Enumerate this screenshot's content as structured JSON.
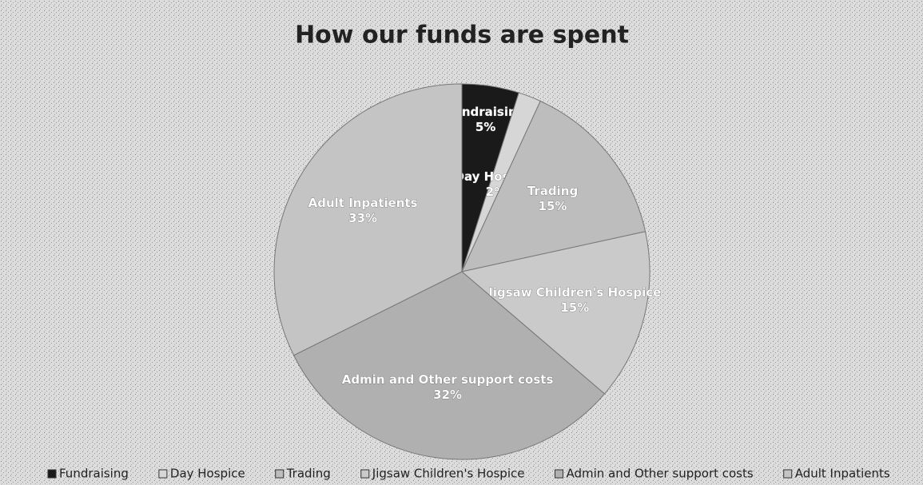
{
  "chart_data": {
    "type": "pie",
    "title": "How our funds are spent",
    "categories": [
      "Fundraising",
      "Day Hospice",
      "Trading",
      "Jigsaw Children's Hospice",
      "Admin and Other support costs",
      "Adult Inpatients"
    ],
    "values": [
      5,
      2,
      15,
      15,
      32,
      33
    ],
    "value_labels": [
      "5%",
      "2%",
      "15%",
      "15%",
      "32%",
      "33%"
    ],
    "colors": [
      "#1a1a1a",
      "#d6d6d6",
      "#bdbdbd",
      "#cacaca",
      "#b0b0b0",
      "#c4c4c4"
    ],
    "legend": "bottom"
  }
}
